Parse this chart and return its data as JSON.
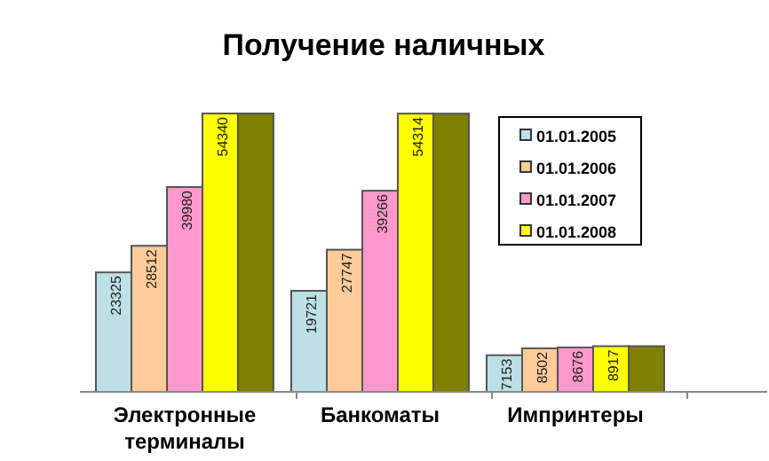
{
  "chart_data": {
    "type": "bar",
    "title": "Получение наличных",
    "categories": [
      "Электронные терминалы",
      "Банкоматы",
      "Импринтеры"
    ],
    "series": [
      {
        "name": "01.01.2005",
        "color": "#bde0e6",
        "values": [
          23325,
          19721,
          7153
        ],
        "value_labels": [
          "23325",
          "19721",
          "7153"
        ]
      },
      {
        "name": "01.01.2006",
        "color": "#ffcc99",
        "values": [
          28512,
          27747,
          8502
        ],
        "value_labels": [
          "28512",
          "27747",
          "8502"
        ]
      },
      {
        "name": "01.01.2007",
        "color": "#ff99cc",
        "values": [
          39980,
          39266,
          8676
        ],
        "value_labels": [
          "39980",
          "39266",
          "8676"
        ]
      },
      {
        "name": "01.01.2008",
        "color": "#ffff00",
        "values": [
          54340,
          54314,
          8917
        ],
        "value_labels": [
          "54340",
          "54314",
          "8917"
        ]
      },
      {
        "color": "#808000",
        "values": [
          54340,
          54314,
          8917
        ]
      }
    ],
    "legend": "top right"
  }
}
